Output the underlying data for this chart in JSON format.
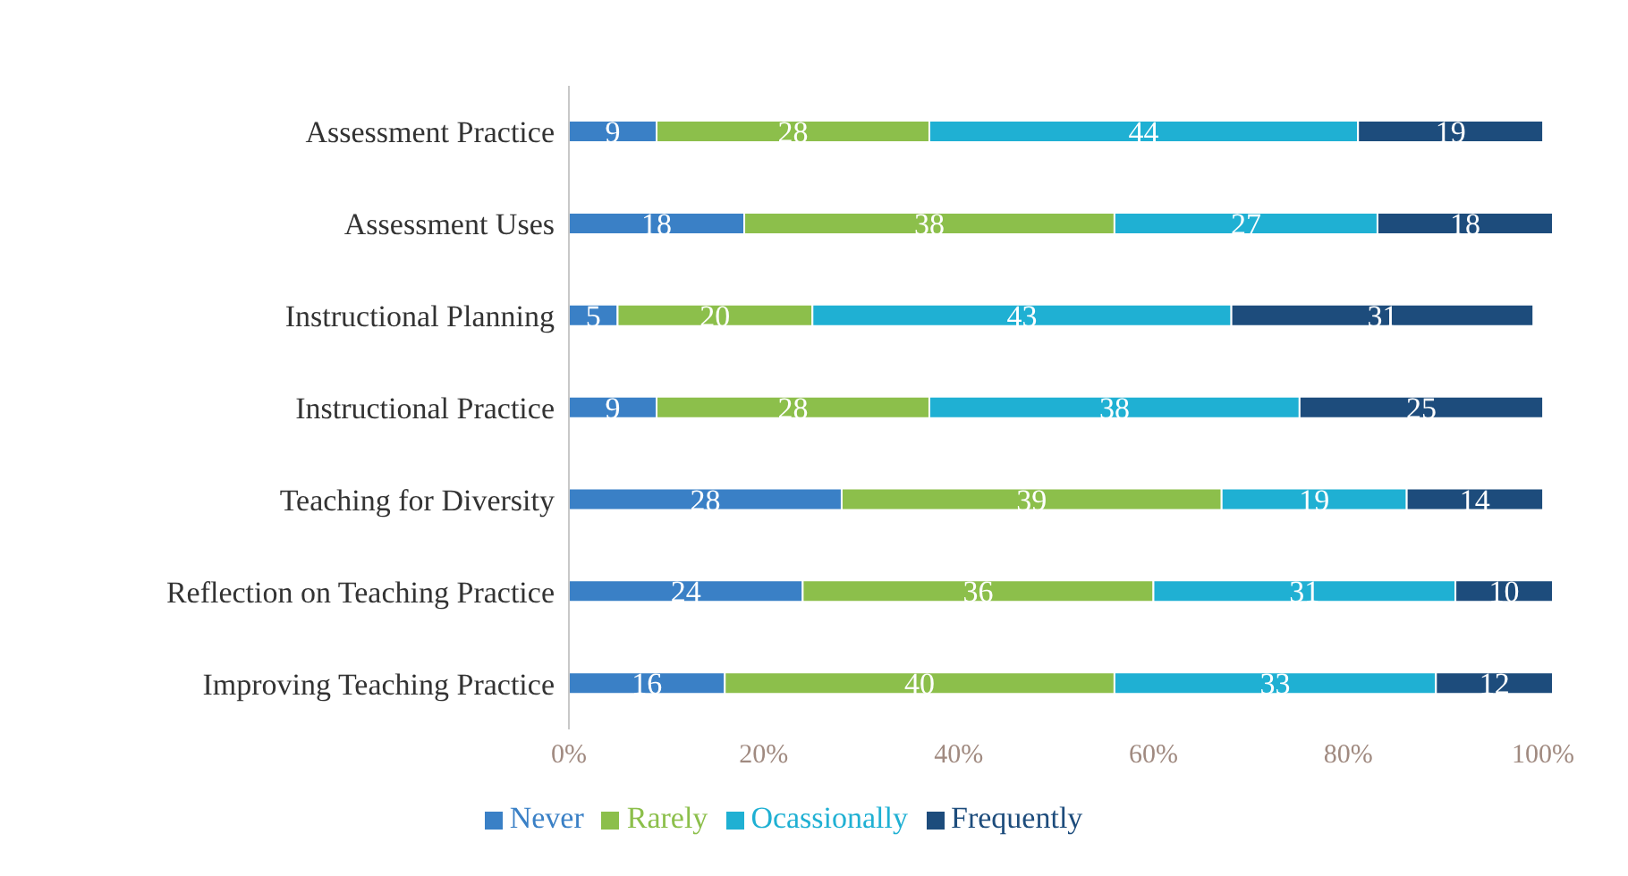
{
  "chart_data": {
    "type": "bar",
    "orientation": "horizontal",
    "stacked": true,
    "categories": [
      "Assessment  Practice",
      "Assessment Uses",
      "Instructional Planning",
      "Instructional  Practice",
      "Teaching for Diversity",
      "Reflection on Teaching Practice",
      "Improving Teaching Practice"
    ],
    "series": [
      {
        "name": "Never",
        "color": "#3a80c6",
        "values": [
          9,
          18,
          5,
          9,
          28,
          24,
          16
        ]
      },
      {
        "name": "Rarely",
        "color": "#8cbf4b",
        "values": [
          28,
          38,
          20,
          28,
          39,
          36,
          40
        ]
      },
      {
        "name": "Ocassionally",
        "color": "#1fb0d3",
        "values": [
          44,
          27,
          43,
          38,
          19,
          31,
          33
        ]
      },
      {
        "name": "Frequently",
        "color": "#1d4c7c",
        "values": [
          19,
          18,
          31,
          25,
          14,
          10,
          12
        ]
      }
    ],
    "xlim": [
      0,
      101
    ],
    "xticks": [
      {
        "value": 0,
        "label": "0%"
      },
      {
        "value": 20,
        "label": "20%"
      },
      {
        "value": 40,
        "label": "40%"
      },
      {
        "value": 60,
        "label": "60%"
      },
      {
        "value": 80,
        "label": "80%"
      },
      {
        "value": 100,
        "label": "100%"
      }
    ],
    "data_labels": true,
    "legend": "bottom",
    "grid": false
  }
}
